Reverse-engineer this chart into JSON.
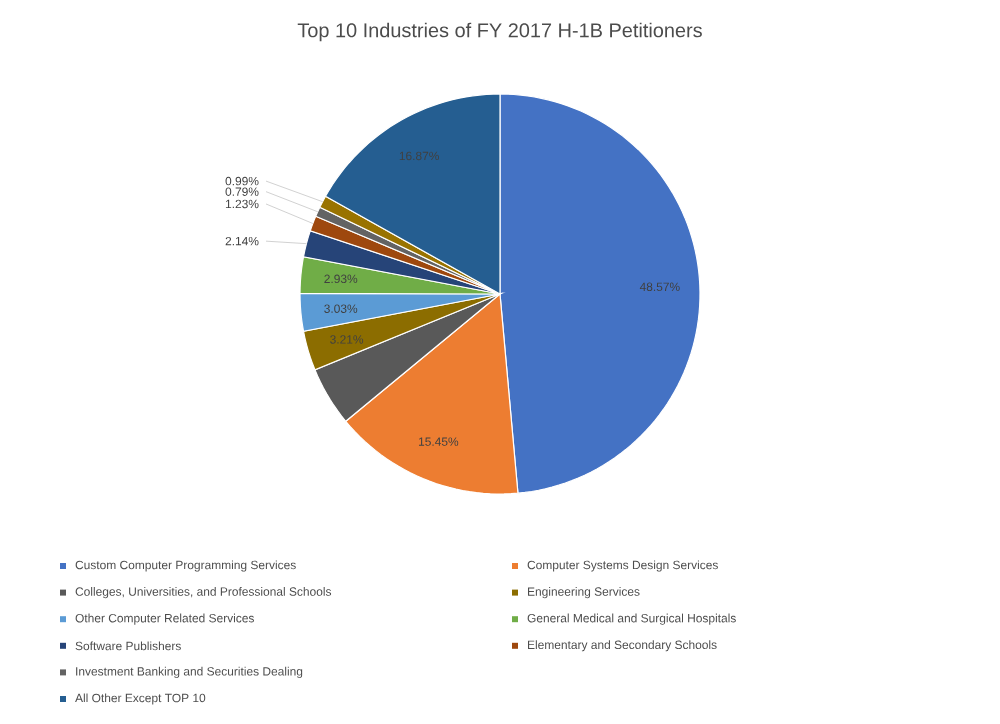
{
  "chart_data": {
    "type": "pie",
    "title": "Top 10 Industries of FY 2017 H-1B Petitioners",
    "categories": [
      "Custom Computer Programming Services",
      "Computer Systems Design Services",
      "Colleges, Universities, and Professional Schools",
      "Engineering Services",
      "Other Computer Related Services",
      "General Medical and Surgical Hospitals",
      "Software Publishers",
      "Elementary and Secondary Schools",
      "Investment Banking and Securities Dealing",
      null,
      "All Other Except TOP 10"
    ],
    "values": [
      48.57,
      15.45,
      4.79,
      3.21,
      3.03,
      2.93,
      2.14,
      1.23,
      0.79,
      0.99,
      16.87
    ],
    "value_labels": [
      "48.57%",
      "15.45%",
      null,
      "3.21%",
      "3.03%",
      "2.93%",
      "2.14%",
      "1.23%",
      "0.79%",
      "0.99%",
      "16.87%"
    ],
    "colors": [
      "#4472c4",
      "#ed7d31",
      "#595959",
      "#8c6d00",
      "#5b9bd5",
      "#70ad47",
      "#264478",
      "#9e480e",
      "#636363",
      "#997300",
      "#255e91"
    ],
    "legend": "bottom"
  }
}
